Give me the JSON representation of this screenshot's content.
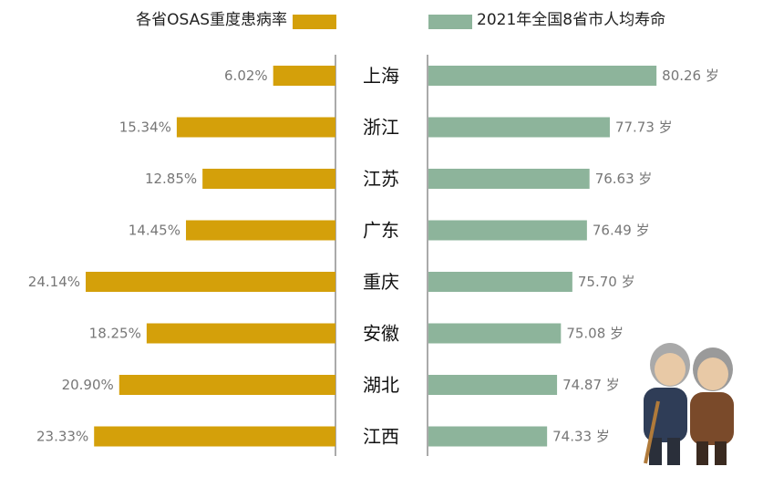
{
  "chart_data": {
    "type": "bar",
    "orientation": "horizontal-butterfly",
    "categories": [
      "上海",
      "浙江",
      "江苏",
      "广东",
      "重庆",
      "安徽",
      "湖北",
      "江西"
    ],
    "series": [
      {
        "name": "各省OSAS重度患病率",
        "values": [
          6.02,
          15.34,
          12.85,
          14.45,
          24.14,
          18.25,
          20.9,
          23.33
        ],
        "labels": [
          "6.02%",
          "15.34%",
          "12.85%",
          "14.45%",
          "24.14%",
          "18.25%",
          "20.90%",
          "23.33%"
        ],
        "color": "#D4A00A",
        "xlim": [
          0,
          26
        ],
        "side": "left"
      },
      {
        "name": "2021年全国8省市人均寿命",
        "values": [
          80.26,
          77.73,
          76.63,
          76.49,
          75.7,
          75.08,
          74.87,
          74.33
        ],
        "labels": [
          "80.26 岁",
          "77.73 岁",
          "76.63 岁",
          "76.49 岁",
          "75.70 岁",
          "75.08 岁",
          "74.87 岁",
          "74.33 岁"
        ],
        "color": "#8DB49B",
        "xlim": [
          67.9,
          82
        ],
        "side": "right"
      }
    ],
    "legend": "top",
    "grid": false
  }
}
